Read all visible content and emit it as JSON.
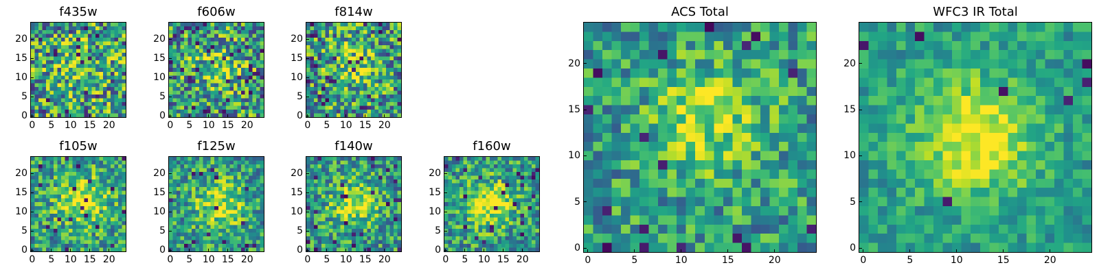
{
  "figure": {
    "colormap": "viridis",
    "background": "#ffffff",
    "frame_color": "#000000"
  },
  "chart_data": [
    {
      "type": "heatmap",
      "title": "f435w",
      "xticks": [
        "0",
        "5",
        "10",
        "15",
        "20"
      ],
      "yticks": [
        "0",
        "5",
        "10",
        "15",
        "20"
      ],
      "xlim": [
        0,
        24
      ],
      "ylim": [
        0,
        24
      ],
      "grid_size": 25,
      "seed": 11,
      "noise": 0.85,
      "center": [
        12,
        13
      ],
      "sigma": 5.0,
      "amp": 0.15,
      "dark_fraction": 0.03
    },
    {
      "type": "heatmap",
      "title": "f606w",
      "xticks": [
        "0",
        "5",
        "10",
        "15",
        "20"
      ],
      "yticks": [
        "0",
        "5",
        "10",
        "15",
        "20"
      ],
      "xlim": [
        0,
        24
      ],
      "ylim": [
        0,
        24
      ],
      "grid_size": 25,
      "seed": 23,
      "noise": 0.8,
      "center": [
        12,
        13
      ],
      "sigma": 4.0,
      "amp": 0.25,
      "dark_fraction": 0.05
    },
    {
      "type": "heatmap",
      "title": "f814w",
      "xticks": [
        "0",
        "5",
        "10",
        "15",
        "20"
      ],
      "yticks": [
        "0",
        "5",
        "10",
        "15",
        "20"
      ],
      "xlim": [
        0,
        24
      ],
      "ylim": [
        0,
        24
      ],
      "grid_size": 25,
      "seed": 37,
      "noise": 0.8,
      "center": [
        12,
        13
      ],
      "sigma": 4.0,
      "amp": 0.25,
      "dark_fraction": 0.05
    },
    {
      "type": "heatmap",
      "title": "f105w",
      "xticks": [
        "0",
        "5",
        "10",
        "15",
        "20"
      ],
      "yticks": [
        "0",
        "5",
        "10",
        "15",
        "20"
      ],
      "xlim": [
        0,
        24
      ],
      "ylim": [
        0,
        24
      ],
      "grid_size": 25,
      "seed": 41,
      "noise": 0.6,
      "center": [
        13,
        13
      ],
      "sigma": 5.0,
      "amp": 0.35,
      "dark_fraction": 0.03
    },
    {
      "type": "heatmap",
      "title": "f125w",
      "xticks": [
        "0",
        "5",
        "10",
        "15",
        "20"
      ],
      "yticks": [
        "0",
        "5",
        "10",
        "15",
        "20"
      ],
      "xlim": [
        0,
        24
      ],
      "ylim": [
        0,
        24
      ],
      "grid_size": 25,
      "seed": 53,
      "noise": 0.6,
      "center": [
        13,
        12
      ],
      "sigma": 4.5,
      "amp": 0.35,
      "dark_fraction": 0.03
    },
    {
      "type": "heatmap",
      "title": "f140w",
      "xticks": [
        "0",
        "5",
        "10",
        "15",
        "20"
      ],
      "yticks": [
        "0",
        "5",
        "10",
        "15",
        "20"
      ],
      "xlim": [
        0,
        24
      ],
      "ylim": [
        0,
        24
      ],
      "grid_size": 25,
      "seed": 67,
      "noise": 0.6,
      "center": [
        12,
        12
      ],
      "sigma": 4.0,
      "amp": 0.4,
      "dark_fraction": 0.04
    },
    {
      "type": "heatmap",
      "title": "f160w",
      "xticks": [
        "0",
        "5",
        "10",
        "15",
        "20"
      ],
      "yticks": [
        "0",
        "5",
        "10",
        "15",
        "20"
      ],
      "xlim": [
        0,
        24
      ],
      "ylim": [
        0,
        24
      ],
      "grid_size": 25,
      "seed": 79,
      "noise": 0.6,
      "center": [
        11,
        12
      ],
      "sigma": 4.0,
      "amp": 0.45,
      "dark_fraction": 0.04
    },
    {
      "type": "heatmap",
      "title": "ACS Total",
      "xticks": [
        "0",
        "5",
        "10",
        "15",
        "20"
      ],
      "yticks": [
        "0",
        "5",
        "10",
        "15",
        "20"
      ],
      "xlim": [
        0,
        24
      ],
      "ylim": [
        0,
        24
      ],
      "grid_size": 25,
      "seed": 97,
      "noise": 0.55,
      "center": [
        13,
        14
      ],
      "sigma": 4.0,
      "amp": 0.35,
      "dark_fraction": 0.035
    },
    {
      "type": "heatmap",
      "title": "WFC3 IR Total",
      "xticks": [
        "0",
        "5",
        "10",
        "15",
        "20"
      ],
      "yticks": [
        "0",
        "5",
        "10",
        "15",
        "20"
      ],
      "xlim": [
        0,
        24
      ],
      "ylim": [
        0,
        24
      ],
      "grid_size": 25,
      "seed": 113,
      "noise": 0.35,
      "center": [
        12,
        12
      ],
      "sigma": 4.5,
      "amp": 0.45,
      "dark_fraction": 0.015
    }
  ]
}
